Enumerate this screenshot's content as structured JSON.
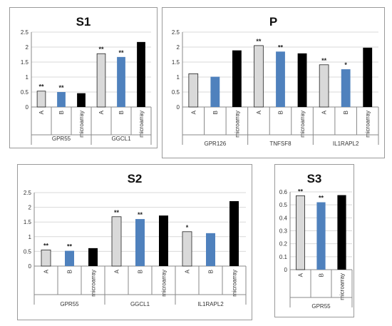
{
  "figure": "multi-panel bar chart",
  "colors": {
    "A": "#d9d9d9",
    "B": "#4f81bd",
    "microarray": "#000000",
    "axis": "#888888",
    "grid": "#d9d9d9"
  },
  "chart_data": [
    {
      "id": "S1",
      "type": "bar",
      "title": "S1",
      "ylim": [
        0,
        2.5
      ],
      "yticks": [
        "0",
        "0.5",
        "1",
        "1.5",
        "2",
        "2.5"
      ],
      "grid": true,
      "legend": "none",
      "groups": [
        {
          "gene": "GPR55",
          "bars": [
            {
              "label": "A",
              "value": 0.53,
              "sig": "**"
            },
            {
              "label": "B",
              "value": 0.5,
              "sig": "**"
            },
            {
              "label": "microarray",
              "value": 0.46,
              "sig": ""
            }
          ]
        },
        {
          "gene": "GGCL1",
          "bars": [
            {
              "label": "A",
              "value": 1.78,
              "sig": "**"
            },
            {
              "label": "B",
              "value": 1.67,
              "sig": "**"
            },
            {
              "label": "microarray",
              "value": 2.17,
              "sig": ""
            }
          ]
        }
      ]
    },
    {
      "id": "P",
      "type": "bar",
      "title": "P",
      "ylim": [
        0,
        2.5
      ],
      "yticks": [
        "0",
        "0.5",
        "1",
        "1.5",
        "2",
        "2.5"
      ],
      "grid": true,
      "legend": "none",
      "groups": [
        {
          "gene": "GPR126",
          "bars": [
            {
              "label": "A",
              "value": 1.11,
              "sig": ""
            },
            {
              "label": "B",
              "value": 1.01,
              "sig": ""
            },
            {
              "label": "microarray",
              "value": 1.89,
              "sig": ""
            }
          ]
        },
        {
          "gene": "TNFSF8",
          "bars": [
            {
              "label": "A",
              "value": 2.05,
              "sig": "**"
            },
            {
              "label": "B",
              "value": 1.85,
              "sig": "**"
            },
            {
              "label": "microarray",
              "value": 1.79,
              "sig": ""
            }
          ]
        },
        {
          "gene": "IL1RAPL2",
          "bars": [
            {
              "label": "A",
              "value": 1.41,
              "sig": "**"
            },
            {
              "label": "B",
              "value": 1.26,
              "sig": "*"
            },
            {
              "label": "microarray",
              "value": 1.98,
              "sig": ""
            }
          ]
        }
      ]
    },
    {
      "id": "S2",
      "type": "bar",
      "title": "S2",
      "ylim": [
        0,
        2.5
      ],
      "yticks": [
        "0",
        "0.5",
        "1",
        "1.5",
        "2",
        "2.5"
      ],
      "grid": true,
      "legend": "none",
      "groups": [
        {
          "gene": "GPR55",
          "bars": [
            {
              "label": "A",
              "value": 0.55,
              "sig": "**"
            },
            {
              "label": "B",
              "value": 0.52,
              "sig": "**"
            },
            {
              "label": "microarray",
              "value": 0.61,
              "sig": ""
            }
          ]
        },
        {
          "gene": "GGCL1",
          "bars": [
            {
              "label": "A",
              "value": 1.68,
              "sig": "**"
            },
            {
              "label": "B",
              "value": 1.6,
              "sig": "**"
            },
            {
              "label": "microarray",
              "value": 1.72,
              "sig": ""
            }
          ]
        },
        {
          "gene": "IL1RAPL2",
          "bars": [
            {
              "label": "A",
              "value": 1.17,
              "sig": "*"
            },
            {
              "label": "B",
              "value": 1.12,
              "sig": ""
            },
            {
              "label": "microarray",
              "value": 2.21,
              "sig": ""
            }
          ]
        }
      ]
    },
    {
      "id": "S3",
      "type": "bar",
      "title": "S3",
      "ylim": [
        0,
        0.6
      ],
      "yticks": [
        "0",
        "0.1",
        "0.2",
        "0.3",
        "0.4",
        "0.5",
        "0.6"
      ],
      "grid": true,
      "legend": "none",
      "groups": [
        {
          "gene": "GPR55",
          "bars": [
            {
              "label": "A",
              "value": 0.57,
              "sig": "**"
            },
            {
              "label": "B",
              "value": 0.52,
              "sig": "**"
            },
            {
              "label": "microarray",
              "value": 0.575,
              "sig": ""
            }
          ]
        }
      ]
    }
  ]
}
